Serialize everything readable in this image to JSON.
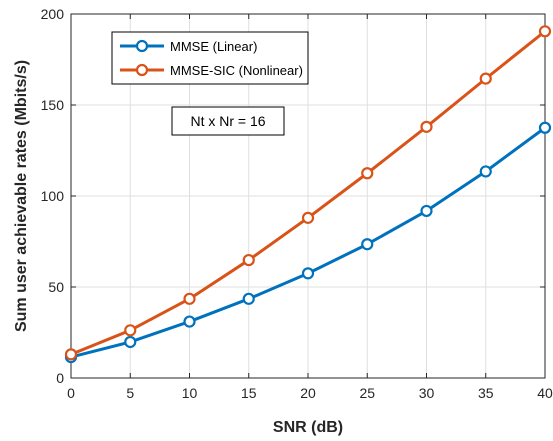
{
  "chart_data": {
    "type": "line",
    "xlabel": "SNR (dB)",
    "ylabel": "Sum user achievable rates (Mbits/s)",
    "xlim": [
      0,
      40
    ],
    "ylim": [
      0,
      200
    ],
    "x_ticks": [
      0,
      5,
      10,
      15,
      20,
      25,
      30,
      35,
      40
    ],
    "y_ticks": [
      0,
      50,
      100,
      150,
      200
    ],
    "grid": true,
    "legend_position": "top-left",
    "x": [
      0,
      5,
      10,
      15,
      20,
      25,
      30,
      35,
      40
    ],
    "series": [
      {
        "name": "MMSE (Linear)",
        "color": "#0072BD",
        "marker": "circle",
        "values": [
          11.5,
          19.8,
          31,
          43.5,
          57.5,
          73.5,
          91.8,
          113.5,
          137.5
        ]
      },
      {
        "name": "MMSE-SIC (Nonlinear)",
        "color": "#D95319",
        "marker": "circle",
        "values": [
          13,
          26.2,
          43.5,
          64.8,
          88,
          112.5,
          138,
          164.5,
          190.5
        ]
      }
    ],
    "annotation": "Nt x Nr = 16"
  }
}
